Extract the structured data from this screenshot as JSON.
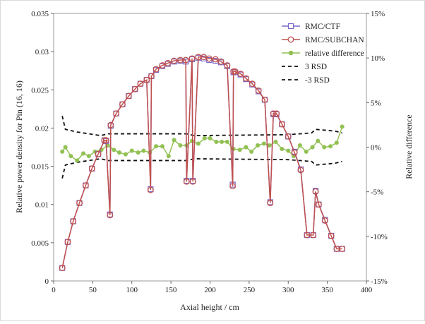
{
  "chart_data": {
    "type": "line",
    "xlabel": "Axial height / cm",
    "ylabel": "Relative power density for Pin (16, 16)",
    "y2label": "Relative difference",
    "xlim": [
      0,
      400
    ],
    "ylim": [
      0,
      0.035
    ],
    "y2lim": [
      -15,
      15
    ],
    "x_ticks": [
      "0",
      "50",
      "100",
      "150",
      "200",
      "250",
      "300",
      "350",
      "400"
    ],
    "y_ticks": [
      "0",
      "0.005",
      "0.01",
      "0.015",
      "0.02",
      "0.025",
      "0.03",
      "0.035"
    ],
    "y2_ticks": [
      "15%",
      "10%",
      "5%",
      "0%",
      "-5%",
      "-10%",
      "-15%"
    ],
    "legend_position": "top-right",
    "grid": false,
    "x": [
      11,
      18,
      25,
      33,
      41,
      49,
      57,
      65,
      67,
      72,
      73,
      80,
      88,
      96,
      104,
      111,
      119,
      124,
      125,
      131,
      139,
      146,
      154,
      162,
      169,
      170,
      177,
      178,
      185,
      192,
      199,
      207,
      214,
      222,
      229,
      230,
      232,
      239,
      246,
      254,
      262,
      270,
      277,
      281,
      285,
      292,
      300,
      308,
      316,
      324,
      332,
      335,
      339,
      347,
      355,
      362,
      369
    ],
    "series": [
      {
        "name": "RMC/CTF",
        "axis": "left",
        "color": "#7a66c8",
        "marker": "square",
        "values": [
          0.0017,
          0.0051,
          0.0078,
          0.0102,
          0.0125,
          0.0147,
          0.0166,
          0.0184,
          0.0183,
          0.0087,
          0.0203,
          0.0219,
          0.0231,
          0.0242,
          0.0251,
          0.0258,
          0.0263,
          0.012,
          0.0268,
          0.0276,
          0.0281,
          0.0284,
          0.0287,
          0.0288,
          0.0287,
          0.0131,
          0.029,
          0.0131,
          0.0292,
          0.0291,
          0.0289,
          0.0288,
          0.0286,
          0.0281,
          0.0126,
          0.0273,
          0.0273,
          0.027,
          0.0264,
          0.0257,
          0.0248,
          0.0237,
          0.0103,
          0.0218,
          0.0218,
          0.0205,
          0.0189,
          0.0169,
          0.0146,
          0.006,
          0.006,
          0.0118,
          0.01,
          0.008,
          0.0059,
          0.0042,
          0.0042
        ]
      },
      {
        "name": "RMC/SUBCHAN",
        "axis": "left",
        "color": "#c0504d",
        "marker": "circle",
        "values": [
          0.0017,
          0.0051,
          0.0078,
          0.0102,
          0.0125,
          0.0147,
          0.0166,
          0.0184,
          0.0184,
          0.0086,
          0.0204,
          0.0219,
          0.0231,
          0.0242,
          0.0251,
          0.0258,
          0.0263,
          0.0119,
          0.0268,
          0.0277,
          0.0282,
          0.0285,
          0.0288,
          0.0289,
          0.0289,
          0.013,
          0.0291,
          0.013,
          0.0293,
          0.0293,
          0.0291,
          0.029,
          0.0287,
          0.0282,
          0.0124,
          0.0274,
          0.0274,
          0.0271,
          0.0265,
          0.0258,
          0.0249,
          0.0237,
          0.0102,
          0.0219,
          0.0219,
          0.0205,
          0.0189,
          0.0168,
          0.0145,
          0.006,
          0.006,
          0.0117,
          0.01,
          0.0079,
          0.0059,
          0.0042,
          0.0042
        ]
      },
      {
        "name": "relative difference",
        "axis": "right",
        "color": "#92c153",
        "marker": "dot",
        "x": [
          11,
          15,
          22,
          30,
          38,
          45,
          53,
          61,
          69,
          77,
          84,
          92,
          100,
          108,
          115,
          123,
          131,
          139,
          147,
          154,
          162,
          170,
          177,
          185,
          193,
          200,
          208,
          215,
          222,
          230,
          238,
          246,
          253,
          261,
          269,
          276,
          284,
          292,
          300,
          307,
          315,
          323,
          331,
          338,
          346,
          354,
          362,
          369
        ],
        "values": [
          -0.5,
          0.0,
          -1.0,
          -1.5,
          -0.7,
          -1.0,
          -0.5,
          -0.3,
          0.2,
          -0.3,
          -0.6,
          -0.8,
          -0.4,
          -0.6,
          -0.4,
          -0.6,
          0.1,
          0.1,
          -1.0,
          0.8,
          0.2,
          0.2,
          0.7,
          0.4,
          1.0,
          1.0,
          0.6,
          0.6,
          0.6,
          -0.2,
          -0.3,
          0.0,
          -0.5,
          0.2,
          0.4,
          0.2,
          0.6,
          -0.2,
          -0.4,
          -1.0,
          0.2,
          -0.5,
          0.0,
          0.7,
          0.0,
          0.1,
          0.5,
          2.3
        ]
      },
      {
        "name": "3 RSD",
        "axis": "right",
        "color": "#111111",
        "dash": "5,4",
        "x": [
          11,
          15,
          30,
          60,
          70,
          170,
          180,
          300,
          330,
          335,
          360,
          369
        ],
        "values": [
          3.5,
          2.0,
          1.7,
          1.3,
          1.5,
          1.5,
          1.3,
          1.4,
          1.6,
          2.0,
          1.8,
          1.6
        ]
      },
      {
        "name": "-3 RSD",
        "axis": "right",
        "color": "#111111",
        "dash": "5,4",
        "x": [
          11,
          15,
          30,
          60,
          70,
          170,
          180,
          300,
          330,
          335,
          360,
          369
        ],
        "values": [
          -3.5,
          -2.0,
          -1.7,
          -1.3,
          -1.5,
          -1.5,
          -1.3,
          -1.4,
          -1.6,
          -2.0,
          -1.8,
          -1.6
        ]
      }
    ]
  }
}
